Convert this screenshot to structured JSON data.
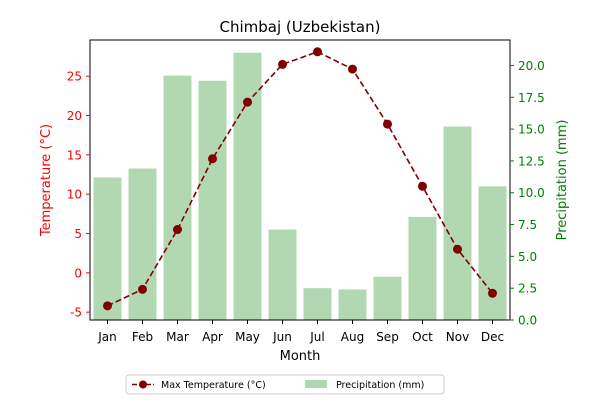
{
  "chart_data": {
    "type": "bar",
    "title": "Chimbaj (Uzbekistan)",
    "xlabel": "Month",
    "ylabel_left": "Temperature (°C)",
    "ylabel_right": "Precipitation (mm)",
    "categories": [
      "Jan",
      "Feb",
      "Mar",
      "Apr",
      "May",
      "Jun",
      "Jul",
      "Aug",
      "Sep",
      "Oct",
      "Nov",
      "Dec"
    ],
    "left_axis": {
      "min": -6,
      "max": 29.6,
      "ticks": [
        -5,
        0,
        5,
        10,
        15,
        20,
        25
      ]
    },
    "right_axis": {
      "min": 0,
      "max": 22,
      "ticks": [
        0.0,
        2.5,
        5.0,
        7.5,
        10.0,
        12.5,
        15.0,
        17.5,
        20.0
      ]
    },
    "series": [
      {
        "name": "Max Temperature (°C)",
        "type": "line",
        "axis": "left",
        "color": "#800000",
        "values": [
          -4.2,
          -2.1,
          5.5,
          14.5,
          21.7,
          26.5,
          28.1,
          25.9,
          18.9,
          11.0,
          3.0,
          -2.6
        ]
      },
      {
        "name": "Precipitation (mm)",
        "type": "bar",
        "axis": "right",
        "color": "#b2d8b2",
        "values": [
          11.2,
          11.9,
          19.2,
          18.8,
          21.0,
          7.1,
          2.5,
          2.4,
          3.4,
          8.1,
          15.2,
          10.5
        ]
      }
    ],
    "legend_position": "bottom-center",
    "left_axis_color": "#ff0000",
    "right_axis_color": "#008000",
    "grid": false
  }
}
